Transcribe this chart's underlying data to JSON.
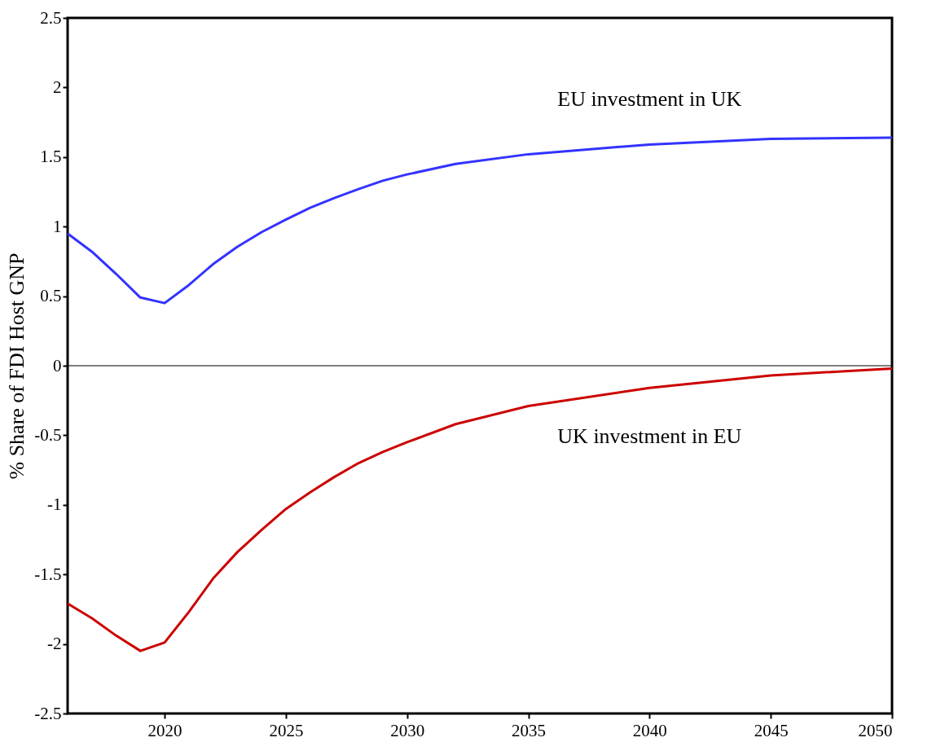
{
  "chart_data": {
    "type": "line",
    "ylabel": "% Share of FDI Host GNP",
    "x": [
      2016,
      2017,
      2018,
      2019,
      2020,
      2021,
      2022,
      2023,
      2024,
      2025,
      2026,
      2027,
      2028,
      2029,
      2030,
      2032,
      2035,
      2040,
      2045,
      2050
    ],
    "series": [
      {
        "name": "EU investment in UK",
        "color": "#3333ff",
        "values": [
          0.95,
          0.82,
          0.66,
          0.49,
          0.45,
          0.58,
          0.73,
          0.855,
          0.96,
          1.05,
          1.135,
          1.205,
          1.27,
          1.33,
          1.375,
          1.45,
          1.52,
          1.59,
          1.63,
          1.64
        ]
      },
      {
        "name": "UK investment in EU",
        "color": "#cc0000",
        "values": [
          -1.71,
          -1.815,
          -1.94,
          -2.05,
          -1.99,
          -1.77,
          -1.53,
          -1.34,
          -1.18,
          -1.03,
          -0.91,
          -0.8,
          -0.7,
          -0.62,
          -0.55,
          -0.42,
          -0.29,
          -0.16,
          -0.07,
          -0.02
        ]
      }
    ],
    "xlim": [
      2016,
      2050
    ],
    "xticks": [
      2020,
      2025,
      2030,
      2035,
      2040,
      2045,
      2050
    ],
    "ylim": [
      -2.5,
      2.5
    ],
    "yticks": [
      -2.5,
      -2,
      -1.5,
      -1,
      -0.5,
      0,
      0.5,
      1,
      1.5,
      2,
      2.5
    ],
    "ref_lines": [
      {
        "axis": "y",
        "value": 0,
        "color": "#000000"
      }
    ],
    "grid": false
  }
}
